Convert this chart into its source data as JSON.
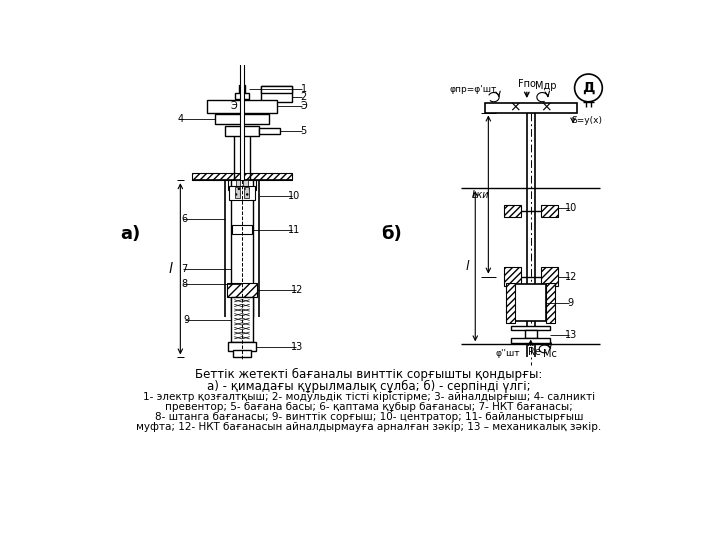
{
  "title_line1": "Беттік жетекті бағаналы винттік сорғышты қондырғы:",
  "title_line2": "а) - қимадағы құрылмалық сұлба; б) - серпінді үлгі;",
  "caption_line3": "1- электр қозғалтқыш; 2- модульдік тісті кірістірме; 3- айналдырғыш; 4- салникті",
  "caption_line4": "превентор; 5- бағана басы; 6- қаптама құбыр бағанасы; 7- НКТ бағанасы;",
  "caption_line5": "8- штанга бағанасы; 9- винттік сорғыш; 10- центратор; 11- байланыстырғыш",
  "caption_line6": "муфта; 12- НКТ бағанасын айналдырмауға арналған зәкір; 13 – механикалық зәкір.",
  "bg_color": "#ffffff",
  "line_color": "#000000",
  "label_a": "а)",
  "label_b": "б)"
}
